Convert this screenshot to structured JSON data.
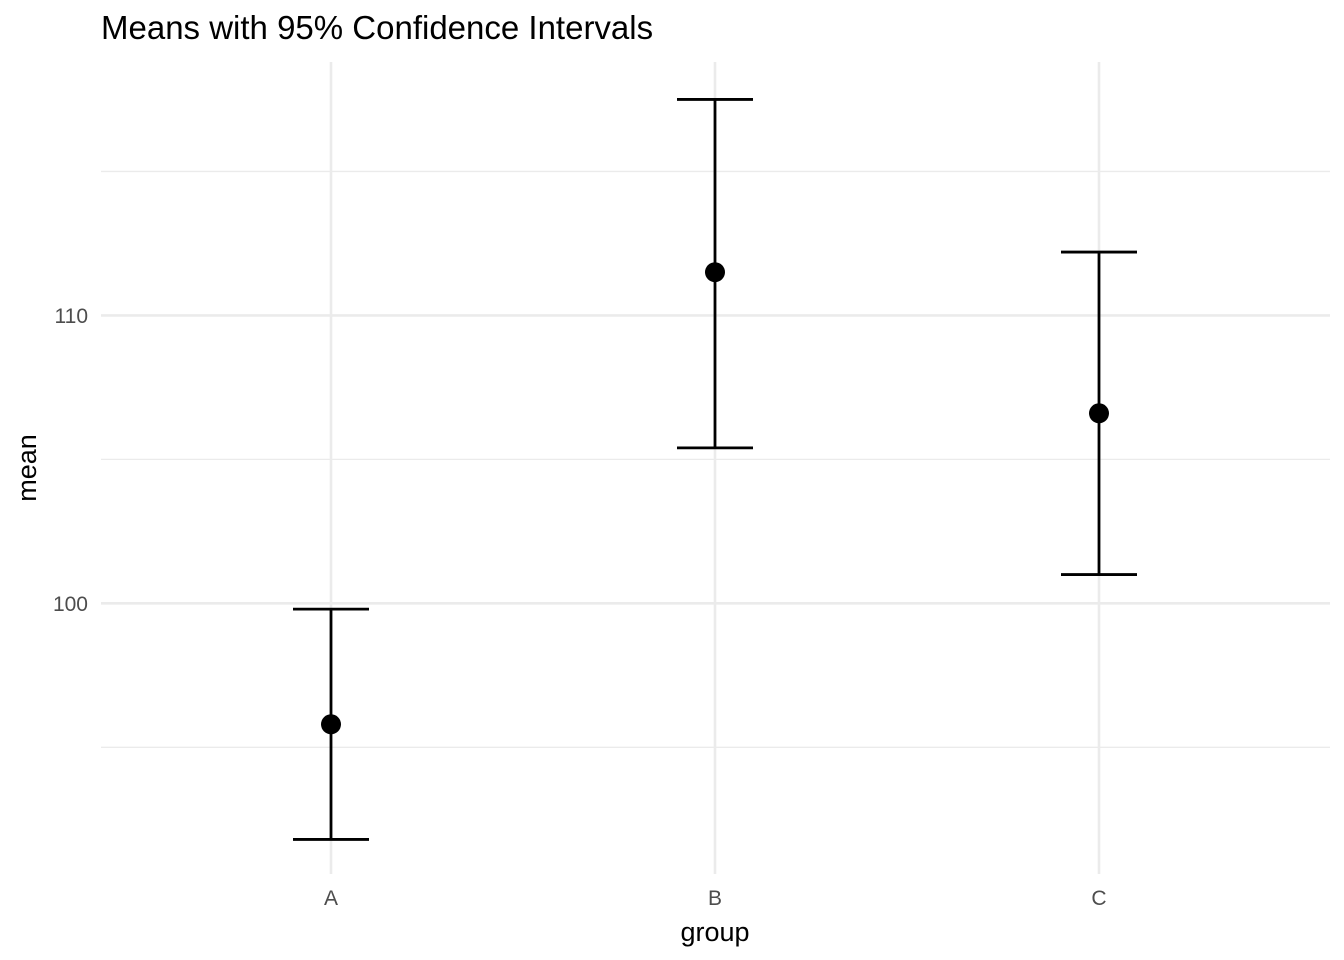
{
  "chart_data": {
    "type": "scatter",
    "title": "Means with 95% Confidence Intervals",
    "xlabel": "group",
    "ylabel": "mean",
    "categories": [
      "A",
      "B",
      "C"
    ],
    "series": [
      {
        "values": [
          95.8,
          111.5,
          106.6
        ],
        "lower": [
          91.8,
          105.4,
          101.0
        ],
        "upper": [
          99.8,
          117.5,
          112.2
        ]
      }
    ],
    "yticks": [
      100,
      110
    ],
    "yminor": [
      95,
      105,
      115
    ],
    "ylim": [
      90.6,
      118.8
    ],
    "grid": true,
    "legend": "none",
    "colors": {
      "point": "#000000",
      "errorbar": "#000000",
      "grid": "#ebebeb",
      "tick_text": "#4d4d4d",
      "background": "#ffffff"
    }
  }
}
